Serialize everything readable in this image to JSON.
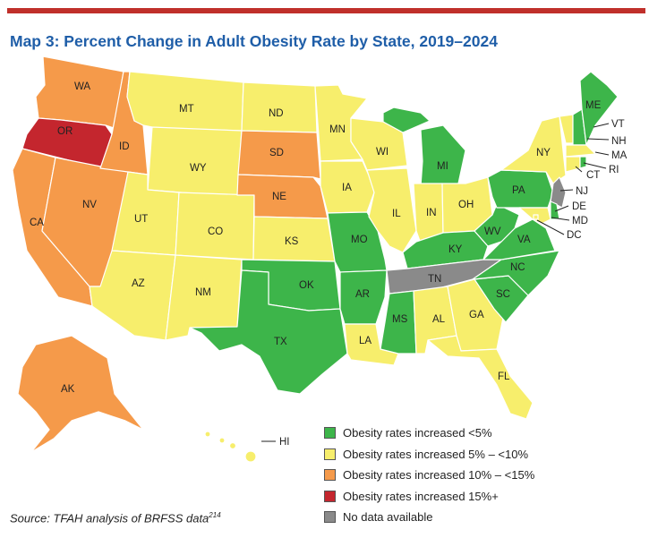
{
  "title": "Map 3: Percent Change in Adult Obesity Rate by State, 2019–2024",
  "source": {
    "text": "Source: TFAH analysis of BRFSS data",
    "note": "214"
  },
  "colors": {
    "green": "#3db54a",
    "yellow": "#f7ee6c",
    "orange": "#f59a4a",
    "red": "#c4262e",
    "gray": "#8a8a8a"
  },
  "legend": [
    {
      "label": "Obesity rates increased <5%",
      "color": "#3db54a"
    },
    {
      "label": "Obesity rates increased 5% – <10%",
      "color": "#f7ee6c"
    },
    {
      "label": "Obesity rates increased 10% – <15%",
      "color": "#f59a4a"
    },
    {
      "label": "Obesity rates increased 15%+",
      "color": "#c4262e"
    },
    {
      "label": "No data available",
      "color": "#8a8a8a"
    }
  ],
  "states": {
    "WA": {
      "label": "WA",
      "category": "10% – <15%"
    },
    "OR": {
      "label": "OR",
      "category": "15%+"
    },
    "CA": {
      "label": "CA",
      "category": "10% – <15%"
    },
    "NV": {
      "label": "NV",
      "category": "10% – <15%"
    },
    "ID": {
      "label": "ID",
      "category": "10% – <15%"
    },
    "MT": {
      "label": "MT",
      "category": "5% – <10%"
    },
    "WY": {
      "label": "WY",
      "category": "5% – <10%"
    },
    "UT": {
      "label": "UT",
      "category": "5% – <10%"
    },
    "AZ": {
      "label": "AZ",
      "category": "5% – <10%"
    },
    "CO": {
      "label": "CO",
      "category": "5% – <10%"
    },
    "NM": {
      "label": "NM",
      "category": "5% – <10%"
    },
    "ND": {
      "label": "ND",
      "category": "5% – <10%"
    },
    "SD": {
      "label": "SD",
      "category": "10% – <15%"
    },
    "NE": {
      "label": "NE",
      "category": "10% – <15%"
    },
    "KS": {
      "label": "KS",
      "category": "5% – <10%"
    },
    "OK": {
      "label": "OK",
      "category": "<5%"
    },
    "TX": {
      "label": "TX",
      "category": "<5%"
    },
    "MN": {
      "label": "MN",
      "category": "5% – <10%"
    },
    "IA": {
      "label": "IA",
      "category": "5% – <10%"
    },
    "MO": {
      "label": "MO",
      "category": "<5%"
    },
    "AR": {
      "label": "AR",
      "category": "<5%"
    },
    "LA": {
      "label": "LA",
      "category": "5% – <10%"
    },
    "WI": {
      "label": "WI",
      "category": "5% – <10%"
    },
    "IL": {
      "label": "IL",
      "category": "5% – <10%"
    },
    "MI": {
      "label": "MI",
      "category": "<5%"
    },
    "IN": {
      "label": "IN",
      "category": "5% – <10%"
    },
    "OH": {
      "label": "OH",
      "category": "5% – <10%"
    },
    "KY": {
      "label": "KY",
      "category": "<5%"
    },
    "TN": {
      "label": "TN",
      "category": "No data"
    },
    "MS": {
      "label": "MS",
      "category": "<5%"
    },
    "AL": {
      "label": "AL",
      "category": "5% – <10%"
    },
    "GA": {
      "label": "GA",
      "category": "5% – <10%"
    },
    "FL": {
      "label": "FL",
      "category": "5% – <10%"
    },
    "SC": {
      "label": "SC",
      "category": "<5%"
    },
    "NC": {
      "label": "NC",
      "category": "<5%"
    },
    "VA": {
      "label": "VA",
      "category": "<5%"
    },
    "WV": {
      "label": "WV",
      "category": "<5%"
    },
    "PA": {
      "label": "PA",
      "category": "<5%"
    },
    "NY": {
      "label": "NY",
      "category": "5% – <10%"
    },
    "ME": {
      "label": "ME",
      "category": "<5%"
    },
    "VT": {
      "label": "VT",
      "category": "5% – <10%"
    },
    "NH": {
      "label": "NH",
      "category": "<5%"
    },
    "MA": {
      "label": "MA",
      "category": "5% – <10%"
    },
    "RI": {
      "label": "RI",
      "category": "<5%"
    },
    "CT": {
      "label": "CT",
      "category": "5% – <10%"
    },
    "NJ": {
      "label": "NJ",
      "category": "No data"
    },
    "DE": {
      "label": "DE",
      "category": "<5%"
    },
    "MD": {
      "label": "MD",
      "category": "5% – <10%"
    },
    "DC": {
      "label": "DC",
      "category": "5% – <10%"
    },
    "AK": {
      "label": "AK",
      "category": "10% – <15%"
    },
    "HI": {
      "label": "HI",
      "category": "5% – <10%"
    }
  }
}
